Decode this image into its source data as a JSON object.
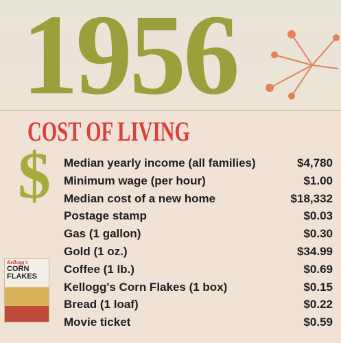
{
  "header": {
    "year": "1956",
    "title": "COST OF LIVING"
  },
  "cereal_box": {
    "brand": "Kellogg's",
    "lines": [
      "CORN",
      "FLAKES"
    ]
  },
  "table": {
    "rows": [
      [
        "Median yearly income (all families)",
        "$4,780"
      ],
      [
        "Minimum wage (per hour)",
        "$1.00"
      ],
      [
        "Median cost of a new home",
        "$18,332"
      ],
      [
        "Postage stamp",
        "$0.03"
      ],
      [
        "Gas (1 gallon)",
        "$0.30"
      ],
      [
        "Gold (1 oz.)",
        "$34.99"
      ],
      [
        "Coffee (1 lb.)",
        "$0.69"
      ],
      [
        "Kellogg's Corn Flakes (1 box)",
        "$0.15"
      ],
      [
        "Bread (1 loaf)",
        "$0.22"
      ],
      [
        "Movie ticket",
        "$0.59"
      ]
    ]
  }
}
